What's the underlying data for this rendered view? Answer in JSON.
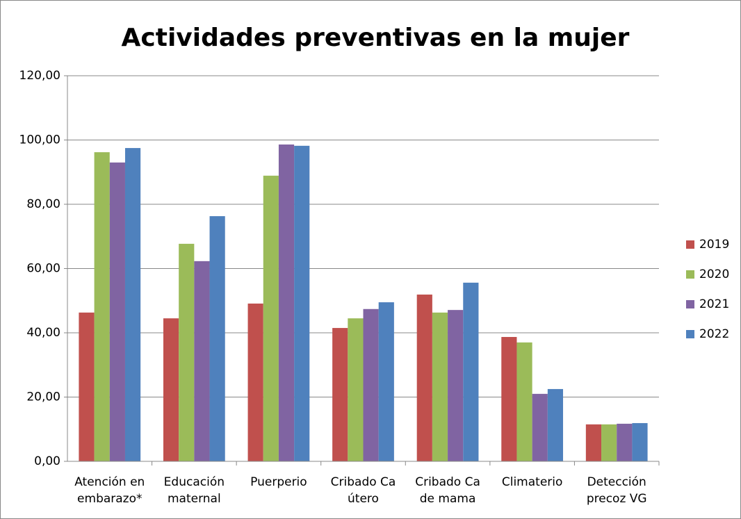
{
  "chart_data": {
    "type": "bar",
    "title": "Actividades preventivas en la mujer",
    "categories": [
      "Atención en embarazo*",
      "Educación maternal",
      "Puerperio",
      "Cribado  Ca útero",
      "Cribado Ca de mama",
      "Climaterio",
      "Detección precoz VG"
    ],
    "series": [
      {
        "name": "2019",
        "color": "#c0504d",
        "values": [
          46.3,
          44.5,
          49.1,
          41.5,
          51.9,
          38.7,
          11.5
        ]
      },
      {
        "name": "2020",
        "color": "#9bbb59",
        "values": [
          96.2,
          67.7,
          88.9,
          44.5,
          46.3,
          37.0,
          11.5
        ]
      },
      {
        "name": "2021",
        "color": "#8064a2",
        "values": [
          93.0,
          62.3,
          98.6,
          47.4,
          47.1,
          21.0,
          11.7
        ]
      },
      {
        "name": "2022",
        "color": "#4f81bd",
        "values": [
          97.5,
          76.3,
          98.2,
          49.5,
          55.6,
          22.5,
          11.9
        ]
      }
    ],
    "ylim": [
      0,
      120
    ],
    "yticks": [
      {
        "value": 0,
        "label": "0,00"
      },
      {
        "value": 20,
        "label": "20,00"
      },
      {
        "value": 40,
        "label": "40,00"
      },
      {
        "value": 60,
        "label": "60,00"
      },
      {
        "value": 80,
        "label": "80,00"
      },
      {
        "value": 100,
        "label": "100,00"
      },
      {
        "value": 120,
        "label": "120,00"
      }
    ],
    "grid": true,
    "legend": "right"
  }
}
